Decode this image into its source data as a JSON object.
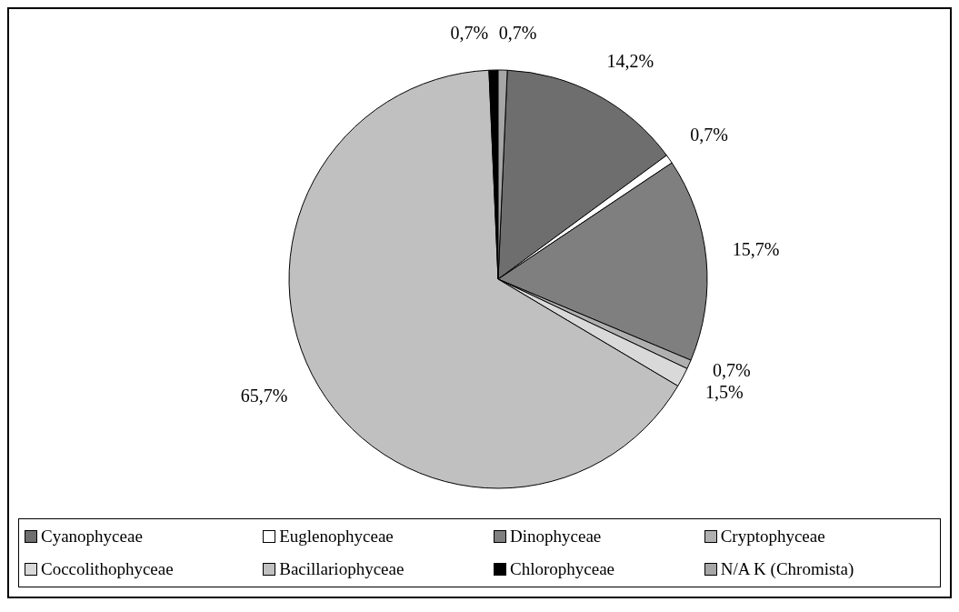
{
  "chart_data": {
    "type": "pie",
    "categories": [
      "Cyanophyceae",
      "Euglenophyceae",
      "Dinophyceae",
      "Cryptophyceae",
      "Coccolithophyceae",
      "Bacillariophyceae",
      "Chlorophyceae",
      "N/A K (Chromista)"
    ],
    "values": [
      14.2,
      0.7,
      15.7,
      0.7,
      1.5,
      65.7,
      0.7,
      0.7
    ],
    "value_labels": [
      "14,2%",
      "0,7%",
      "15,7%",
      "0,7%",
      "1,5%",
      "65,7%",
      "0,7%",
      "0,7%"
    ],
    "colors": [
      "#6e6e6e",
      "#ffffff",
      "#7f7f7f",
      "#b0b0b0",
      "#d9d9d9",
      "#c0c0c0",
      "#000000",
      "#a6a6a6"
    ],
    "legend": "bottom"
  }
}
